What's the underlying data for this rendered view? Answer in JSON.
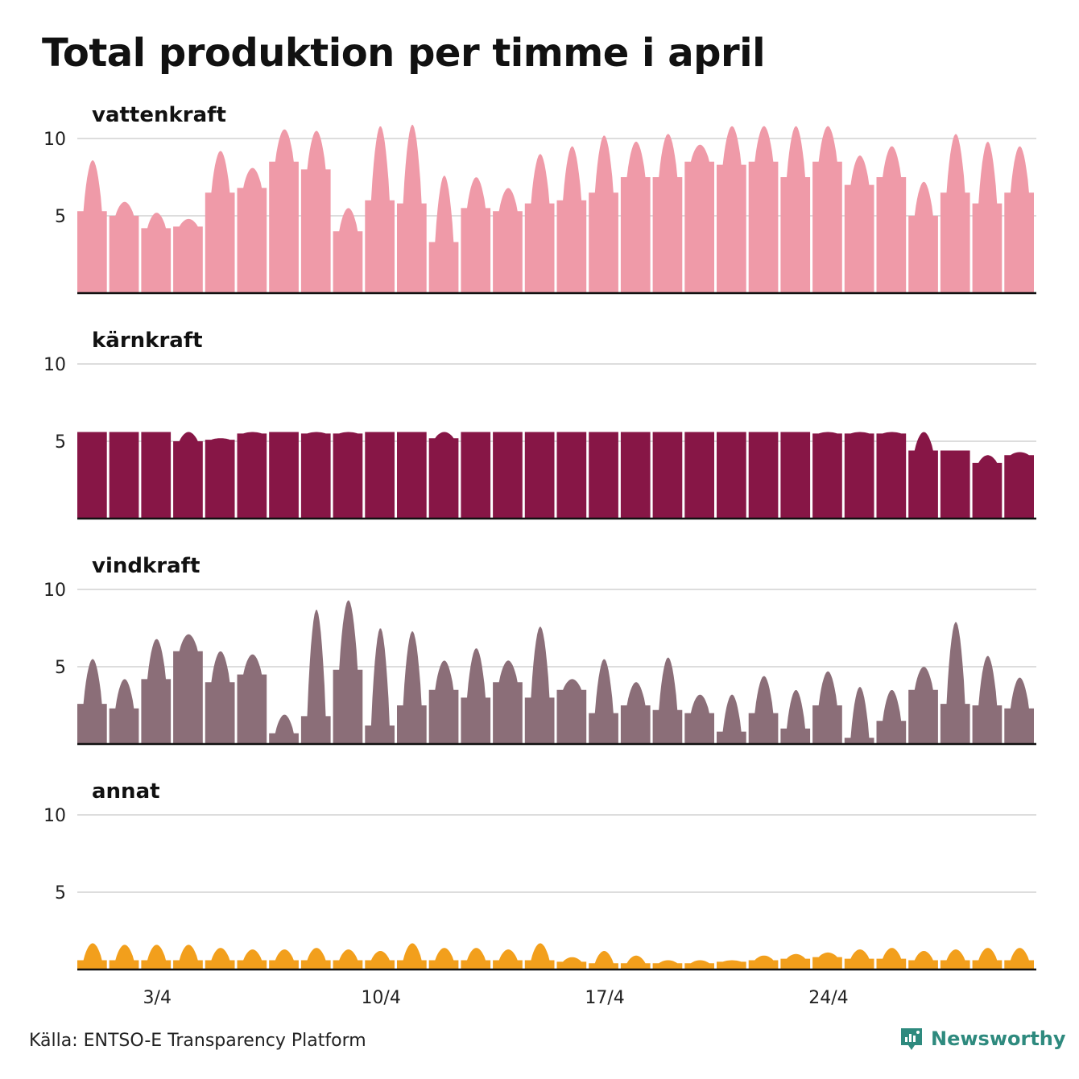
{
  "title": "Total produktion per timme i april",
  "source": "Källa: ENTSO-E Transparency Platform",
  "brand": "Newsworthy",
  "colors": {
    "vattenkraft": "#ef9aa8",
    "karnkraft": "#871646",
    "vindkraft": "#8b6e78",
    "annat": "#f29f1c",
    "grid": "#dddddd",
    "baseline": "#111111",
    "brand": "#2e8a7e"
  },
  "chart_data": {
    "type": "area",
    "x_unit": "day of April",
    "days": 30,
    "ylim": [
      0,
      10
    ],
    "yticks": [
      5,
      10
    ],
    "xticks": [
      {
        "day": 3,
        "label": "3/4"
      },
      {
        "day": 10,
        "label": "10/4"
      },
      {
        "day": 17,
        "label": "17/4"
      },
      {
        "day": 24,
        "label": "24/4"
      }
    ],
    "series": [
      {
        "name": "vattenkraft",
        "color_key": "vattenkraft",
        "daily_min": [
          5.3,
          5.0,
          4.2,
          4.3,
          6.5,
          6.8,
          8.5,
          8.0,
          4.0,
          6.0,
          5.8,
          3.3,
          5.5,
          5.3,
          5.8,
          6.0,
          6.5,
          7.5,
          7.5,
          8.5,
          8.3,
          8.5,
          7.5,
          8.5,
          7.0,
          7.5,
          5.0,
          6.5,
          5.8,
          6.5
        ],
        "daily_max": [
          8.6,
          5.9,
          5.2,
          4.8,
          9.2,
          8.1,
          10.6,
          10.5,
          5.5,
          10.8,
          10.9,
          7.6,
          7.5,
          6.8,
          9.0,
          9.5,
          10.2,
          9.8,
          10.3,
          9.6,
          10.8,
          10.8,
          10.8,
          10.8,
          8.9,
          9.5,
          7.2,
          10.3,
          9.8,
          9.5
        ]
      },
      {
        "name": "kärnkraft",
        "color_key": "karnkraft",
        "daily_min": [
          5.6,
          5.6,
          5.6,
          5.0,
          5.1,
          5.5,
          5.6,
          5.5,
          5.5,
          5.6,
          5.6,
          5.2,
          5.6,
          5.6,
          5.6,
          5.6,
          5.6,
          5.6,
          5.6,
          5.6,
          5.6,
          5.6,
          5.6,
          5.5,
          5.5,
          5.5,
          4.4,
          4.4,
          3.6,
          4.1
        ],
        "daily_max": [
          5.6,
          5.6,
          5.6,
          5.6,
          5.2,
          5.6,
          5.6,
          5.6,
          5.6,
          5.6,
          5.6,
          5.6,
          5.6,
          5.6,
          5.6,
          5.6,
          5.6,
          5.6,
          5.6,
          5.6,
          5.6,
          5.6,
          5.6,
          5.6,
          5.6,
          5.6,
          5.6,
          4.4,
          4.1,
          4.3
        ]
      },
      {
        "name": "vindkraft",
        "color_key": "vindkraft",
        "daily_min": [
          2.6,
          2.3,
          4.2,
          6.0,
          4.0,
          4.5,
          0.7,
          1.8,
          4.8,
          1.2,
          2.5,
          3.5,
          3.0,
          4.0,
          3.0,
          3.5,
          2.0,
          2.5,
          2.2,
          2.0,
          0.8,
          2.0,
          1.0,
          2.5,
          0.4,
          1.5,
          3.5,
          2.6,
          2.5,
          2.3
        ],
        "daily_max": [
          5.5,
          4.2,
          6.8,
          7.1,
          6.0,
          5.8,
          1.9,
          8.7,
          9.3,
          7.5,
          7.3,
          5.4,
          6.2,
          5.4,
          7.6,
          4.2,
          5.5,
          4.0,
          5.6,
          3.2,
          3.2,
          4.4,
          3.5,
          4.7,
          3.7,
          3.5,
          5.0,
          7.9,
          5.7,
          4.3
        ]
      },
      {
        "name": "annat",
        "color_key": "annat",
        "daily_min": [
          0.6,
          0.6,
          0.6,
          0.6,
          0.6,
          0.6,
          0.6,
          0.6,
          0.6,
          0.6,
          0.6,
          0.6,
          0.6,
          0.6,
          0.6,
          0.5,
          0.4,
          0.4,
          0.4,
          0.4,
          0.5,
          0.6,
          0.7,
          0.8,
          0.7,
          0.7,
          0.6,
          0.6,
          0.6,
          0.6
        ],
        "daily_max": [
          1.7,
          1.6,
          1.6,
          1.6,
          1.4,
          1.3,
          1.3,
          1.4,
          1.3,
          1.2,
          1.7,
          1.4,
          1.4,
          1.3,
          1.7,
          0.8,
          1.2,
          0.9,
          0.6,
          0.6,
          0.6,
          0.9,
          1.0,
          1.1,
          1.3,
          1.4,
          1.2,
          1.3,
          1.4,
          1.4
        ]
      }
    ]
  }
}
